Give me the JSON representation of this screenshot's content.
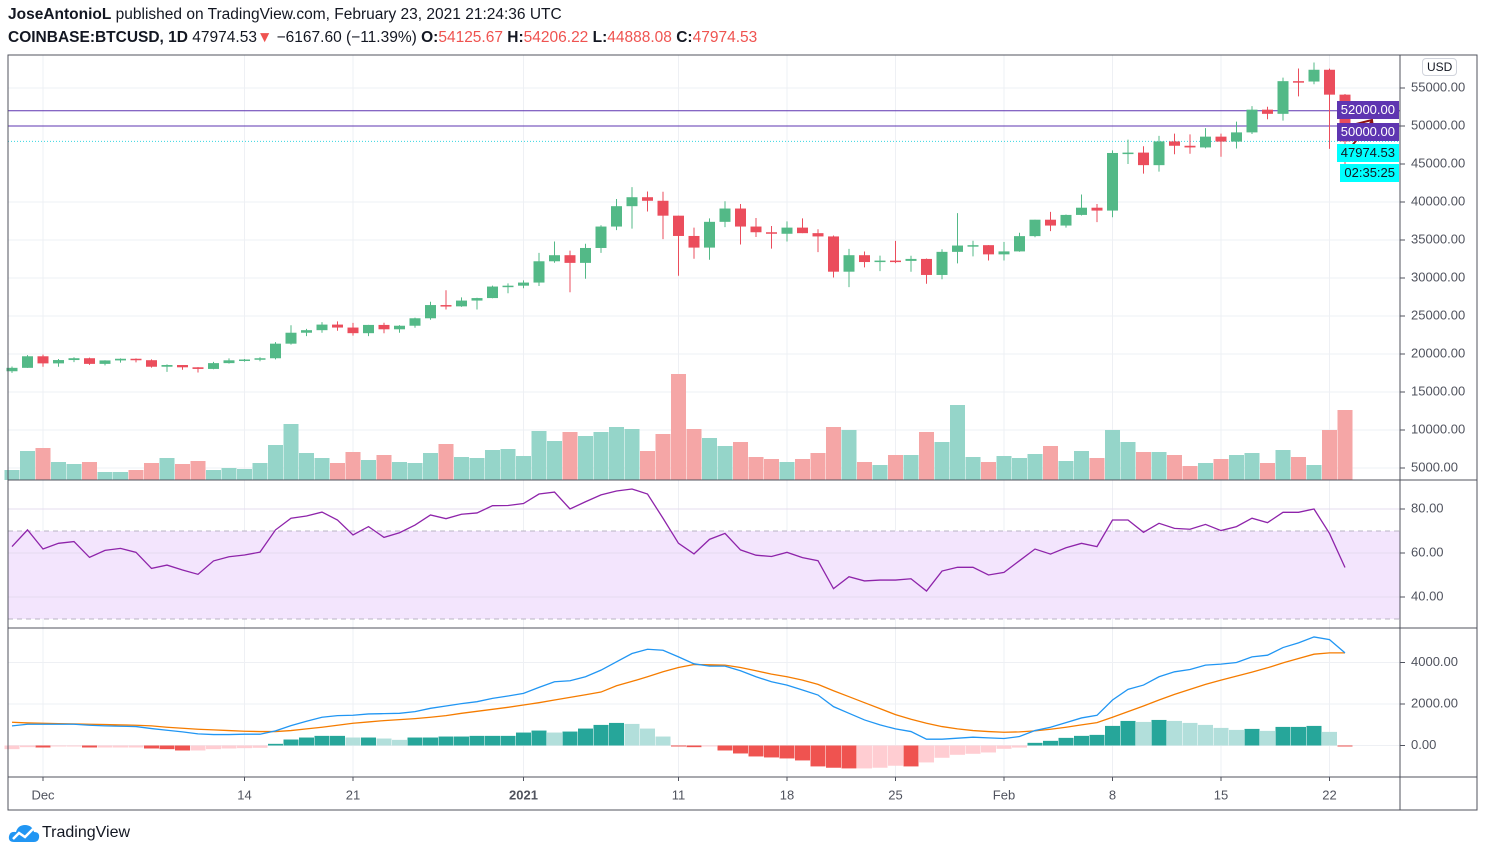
{
  "header": {
    "author": "JoseAntonioL",
    "published": "published on TradingView.com, February 23, 2021 21:24:36 UTC",
    "symbol": "COINBASE:BTCUSD, 1D",
    "last": "47974.53",
    "direction_icon": "triangle-down",
    "change": "−6167.60 (−11.39%)",
    "o_label": "O:",
    "o": "54125.67",
    "h_label": "H:",
    "h": "54206.22",
    "l_label": "L:",
    "l": "44888.08",
    "c_label": "C:",
    "c": "47974.53"
  },
  "price_axis": {
    "currency": "USD",
    "ticks": [
      "55000.00",
      "50000.00",
      "45000.00",
      "40000.00",
      "35000.00",
      "30000.00",
      "25000.00",
      "20000.00",
      "15000.00",
      "10000.00",
      "5000.00"
    ],
    "visible_ticks": [
      55000,
      40000,
      35000,
      30000,
      25000,
      20000,
      15000,
      10000,
      5000
    ],
    "hline_1": {
      "value": 52000,
      "label": "52000.00",
      "color": "#5e35b1"
    },
    "hline_2": {
      "value": 50000,
      "label": "50000.00",
      "color": "#5e35b1"
    },
    "last_price": {
      "value": 47974.53,
      "label": "47974.53",
      "color": "#00ffff"
    },
    "countdown": "02:35:25"
  },
  "colors": {
    "up": "#53b987",
    "down": "#eb4d5c",
    "vol_up": "#95d5c9",
    "vol_down": "#f5a6a6",
    "rsi": "#8e24aa",
    "rsi_band": "#f3e5fd",
    "macd": "#2196f3",
    "signal": "#f57c00",
    "hist_up_strong": "#26a69a",
    "hist_up_weak": "#b2dfdb",
    "hist_down_strong": "#ef5350",
    "hist_down_weak": "#ffcdd2",
    "arrow": "#8b1010"
  },
  "x_axis": {
    "ticks": [
      {
        "date": "2020-12-01",
        "label": "Dec"
      },
      {
        "date": "2020-12-14",
        "label": "14"
      },
      {
        "date": "2020-12-21",
        "label": "21"
      },
      {
        "date": "2021-01-01",
        "label": "2021"
      },
      {
        "date": "2021-01-11",
        "label": "11"
      },
      {
        "date": "2021-01-18",
        "label": "18"
      },
      {
        "date": "2021-01-25",
        "label": "25"
      },
      {
        "date": "2021-02-01",
        "label": "Feb"
      },
      {
        "date": "2021-02-08",
        "label": "8"
      },
      {
        "date": "2021-02-15",
        "label": "15"
      },
      {
        "date": "2021-02-22",
        "label": "22"
      }
    ]
  },
  "rsi_axis": {
    "ticks": [
      "80.00",
      "60.00",
      "40.00"
    ],
    "values": [
      80,
      60,
      40
    ],
    "band": [
      30,
      70
    ]
  },
  "macd_axis": {
    "ticks": [
      "4000.00",
      "2000.00",
      "0.00"
    ],
    "values": [
      4000,
      2000,
      0
    ]
  },
  "chart_data": {
    "type": "candlestick",
    "start_date": "2020-11-29",
    "ylim": [
      3000,
      58500
    ],
    "candles_ohlc": [
      [
        17730,
        18350,
        17520,
        18180
      ],
      [
        18180,
        19860,
        18180,
        19700
      ],
      [
        19700,
        19920,
        18330,
        18765
      ],
      [
        18765,
        19340,
        18330,
        19205
      ],
      [
        19205,
        19570,
        18930,
        19445
      ],
      [
        19445,
        19520,
        18570,
        18700
      ],
      [
        18700,
        19180,
        18500,
        19155
      ],
      [
        19155,
        19420,
        18860,
        19375
      ],
      [
        19375,
        19420,
        18900,
        19185
      ],
      [
        19185,
        19300,
        18200,
        18325
      ],
      [
        18325,
        18640,
        17650,
        18550
      ],
      [
        18550,
        18560,
        17930,
        18250
      ],
      [
        18250,
        18270,
        17570,
        18035
      ],
      [
        18035,
        18960,
        18000,
        18800
      ],
      [
        18800,
        19420,
        18730,
        19170
      ],
      [
        19170,
        19350,
        19000,
        19275
      ],
      [
        19275,
        19570,
        19050,
        19440
      ],
      [
        19440,
        21560,
        19300,
        21360
      ],
      [
        21360,
        23780,
        21230,
        22800
      ],
      [
        22800,
        23300,
        22350,
        23135
      ],
      [
        23135,
        24200,
        22800,
        23870
      ],
      [
        23870,
        24300,
        23060,
        23480
      ],
      [
        23480,
        24100,
        22410,
        22740
      ],
      [
        22740,
        23840,
        22350,
        23825
      ],
      [
        23825,
        24120,
        22730,
        23250
      ],
      [
        23250,
        23800,
        22800,
        23720
      ],
      [
        23720,
        24790,
        23460,
        24700
      ],
      [
        24700,
        26870,
        24500,
        26440
      ],
      [
        26440,
        28380,
        25850,
        26270
      ],
      [
        26270,
        27450,
        26200,
        27030
      ],
      [
        27030,
        27400,
        25850,
        27360
      ],
      [
        27360,
        29000,
        27330,
        28875
      ],
      [
        28875,
        29300,
        28000,
        28990
      ],
      [
        28990,
        29680,
        28650,
        29400
      ],
      [
        29400,
        33300,
        28950,
        32200
      ],
      [
        32200,
        34800,
        32000,
        33000
      ],
      [
        33000,
        33600,
        28130,
        31990
      ],
      [
        31990,
        34500,
        29900,
        33950
      ],
      [
        33950,
        36940,
        33300,
        36770
      ],
      [
        36770,
        40400,
        36300,
        39450
      ],
      [
        39450,
        41950,
        36500,
        40630
      ],
      [
        40630,
        41380,
        38750,
        40160
      ],
      [
        40160,
        41350,
        35110,
        38200
      ],
      [
        38200,
        38200,
        30300,
        35530
      ],
      [
        35530,
        36630,
        32530,
        34000
      ],
      [
        34000,
        37850,
        32400,
        37390
      ],
      [
        37390,
        40100,
        36700,
        39140
      ],
      [
        39140,
        39740,
        34410,
        36770
      ],
      [
        36770,
        37900,
        35400,
        36020
      ],
      [
        36020,
        36850,
        33870,
        35820
      ],
      [
        35820,
        37450,
        34800,
        36630
      ],
      [
        36630,
        37850,
        35900,
        35900
      ],
      [
        35900,
        36420,
        33400,
        35470
      ],
      [
        35470,
        35600,
        30070,
        30830
      ],
      [
        30830,
        33830,
        28800,
        33000
      ],
      [
        33000,
        33480,
        31390,
        32100
      ],
      [
        32100,
        32950,
        30900,
        32290
      ],
      [
        32290,
        34880,
        31950,
        32250
      ],
      [
        32250,
        32920,
        30820,
        32510
      ],
      [
        32510,
        32560,
        29240,
        30400
      ],
      [
        30400,
        33780,
        29840,
        33440
      ],
      [
        33440,
        38530,
        31920,
        34270
      ],
      [
        34270,
        34900,
        32840,
        34320
      ],
      [
        34320,
        34320,
        32300,
        33110
      ],
      [
        33110,
        34740,
        32300,
        33500
      ],
      [
        33500,
        35960,
        33450,
        35510
      ],
      [
        35510,
        37660,
        35370,
        37670
      ],
      [
        37670,
        38700,
        36170,
        36900
      ],
      [
        36900,
        38350,
        36630,
        38300
      ],
      [
        38300,
        40980,
        38220,
        39250
      ],
      [
        39250,
        39740,
        37350,
        38870
      ],
      [
        38870,
        46800,
        37990,
        46450
      ],
      [
        46450,
        48200,
        45000,
        46500
      ],
      [
        46500,
        47340,
        43730,
        44850
      ],
      [
        44850,
        48700,
        43990,
        47970
      ],
      [
        47970,
        48990,
        46280,
        47400
      ],
      [
        47400,
        48900,
        46350,
        47180
      ],
      [
        47180,
        49720,
        47050,
        48600
      ],
      [
        48600,
        49000,
        45950,
        47950
      ],
      [
        47950,
        50580,
        47040,
        49160
      ],
      [
        49160,
        52620,
        48940,
        52150
      ],
      [
        52150,
        52540,
        50880,
        51600
      ],
      [
        51600,
        56370,
        50700,
        55900
      ],
      [
        55900,
        57560,
        53900,
        55850
      ],
      [
        55850,
        58350,
        55500,
        57400
      ],
      [
        57400,
        57550,
        46990,
        54125
      ],
      [
        54125.67,
        54206.22,
        44888.08,
        47974.53
      ]
    ],
    "volume_relative": [
      10,
      29,
      32,
      18,
      16,
      18,
      8,
      8,
      10,
      17,
      22,
      16,
      19,
      10,
      12,
      11,
      17,
      35,
      56,
      27,
      22,
      17,
      28,
      20,
      25,
      18,
      17,
      27,
      36,
      23,
      22,
      30,
      31,
      24,
      49,
      39,
      48,
      44,
      48,
      53,
      51,
      29,
      46,
      106,
      51,
      42,
      34,
      38,
      23,
      21,
      18,
      21,
      27,
      53,
      50,
      18,
      15,
      25,
      25,
      48,
      38,
      75,
      23,
      18,
      24,
      22,
      26,
      34,
      19,
      29,
      22,
      50,
      38,
      28,
      28,
      25,
      14,
      17,
      21,
      25,
      27,
      17,
      30,
      23,
      15,
      50,
      70
    ],
    "rsi": [
      62.9,
      70.5,
      61.8,
      64.4,
      65.2,
      58,
      61.2,
      62.1,
      60.3,
      53,
      54.5,
      52.3,
      50.3,
      56.4,
      58.3,
      59.1,
      60.4,
      70.5,
      75.8,
      76.8,
      78.6,
      75,
      68.2,
      72,
      67.1,
      69.2,
      72.7,
      77.3,
      75.6,
      77.6,
      78.2,
      81.5,
      81.6,
      82.5,
      86.8,
      87.7,
      80,
      83.3,
      86.4,
      88.2,
      89.1,
      86.8,
      75.8,
      64.4,
      59.6,
      66.2,
      68.9,
      61.4,
      59,
      58.4,
      60.3,
      57.9,
      56.5,
      43.8,
      49.2,
      47.3,
      47.7,
      47.7,
      48.3,
      42.7,
      51.8,
      53.5,
      53.5,
      50,
      51.2,
      56.5,
      61.8,
      59.5,
      62.4,
      64.4,
      62.9,
      75,
      75,
      69.4,
      73.5,
      71.2,
      70.8,
      73,
      70.2,
      72,
      75.8,
      73.8,
      78.5,
      78.5,
      80,
      68.9,
      53.4
    ],
    "macd": [
      944,
      1024,
      1024,
      1024,
      1024,
      976,
      944,
      928,
      912,
      816,
      736,
      656,
      560,
      528,
      528,
      544,
      544,
      704,
      960,
      1168,
      1360,
      1440,
      1456,
      1520,
      1536,
      1552,
      1632,
      1792,
      1904,
      2016,
      2112,
      2272,
      2384,
      2512,
      2800,
      3072,
      3120,
      3312,
      3632,
      4032,
      4432,
      4640,
      4592,
      4272,
      3936,
      3824,
      3824,
      3600,
      3312,
      3072,
      2912,
      2672,
      2432,
      1872,
      1552,
      1232,
      992,
      800,
      672,
      304,
      304,
      352,
      400,
      368,
      336,
      432,
      720,
      880,
      1104,
      1328,
      1456,
      2192,
      2704,
      2912,
      3312,
      3552,
      3664,
      3872,
      3920,
      4000,
      4272,
      4352,
      4720,
      4944,
      5232,
      5104,
      4464
    ],
    "signal": [
      1120,
      1088,
      1072,
      1056,
      1040,
      1024,
      1008,
      992,
      976,
      944,
      880,
      832,
      784,
      752,
      720,
      688,
      672,
      672,
      720,
      800,
      880,
      976,
      1072,
      1136,
      1200,
      1248,
      1296,
      1360,
      1440,
      1552,
      1648,
      1744,
      1840,
      1952,
      2064,
      2192,
      2320,
      2448,
      2576,
      2880,
      3088,
      3312,
      3552,
      3760,
      3904,
      3888,
      3872,
      3760,
      3600,
      3440,
      3312,
      3152,
      2944,
      2640,
      2352,
      2064,
      1776,
      1488,
      1264,
      1072,
      912,
      800,
      720,
      672,
      640,
      656,
      704,
      784,
      880,
      992,
      1104,
      1360,
      1632,
      1904,
      2192,
      2464,
      2704,
      2944,
      3152,
      3344,
      3536,
      3744,
      3984,
      4192,
      4400,
      4464,
      4464
    ],
    "histogram": [
      -176,
      -80,
      -96,
      -48,
      -48,
      -96,
      -96,
      -96,
      -96,
      -144,
      -176,
      -240,
      -240,
      -176,
      -144,
      -128,
      -112,
      80,
      288,
      384,
      464,
      464,
      384,
      384,
      336,
      272,
      384,
      384,
      432,
      432,
      464,
      464,
      464,
      624,
      720,
      624,
      672,
      816,
      992,
      1088,
      1040,
      816,
      432,
      -16,
      -80,
      -48,
      -240,
      -384,
      -528,
      -576,
      -624,
      -720,
      -1008,
      -1072,
      -1104,
      -1104,
      -1072,
      -976,
      -1008,
      -816,
      -592,
      -448,
      -400,
      -336,
      -160,
      -100,
      128,
      224,
      368,
      464,
      512,
      944,
      1184,
      1136,
      1232,
      1184,
      1088,
      992,
      848,
      752,
      800,
      704,
      896,
      896,
      944,
      656,
      -16
    ]
  },
  "branding": {
    "name": "TradingView"
  }
}
